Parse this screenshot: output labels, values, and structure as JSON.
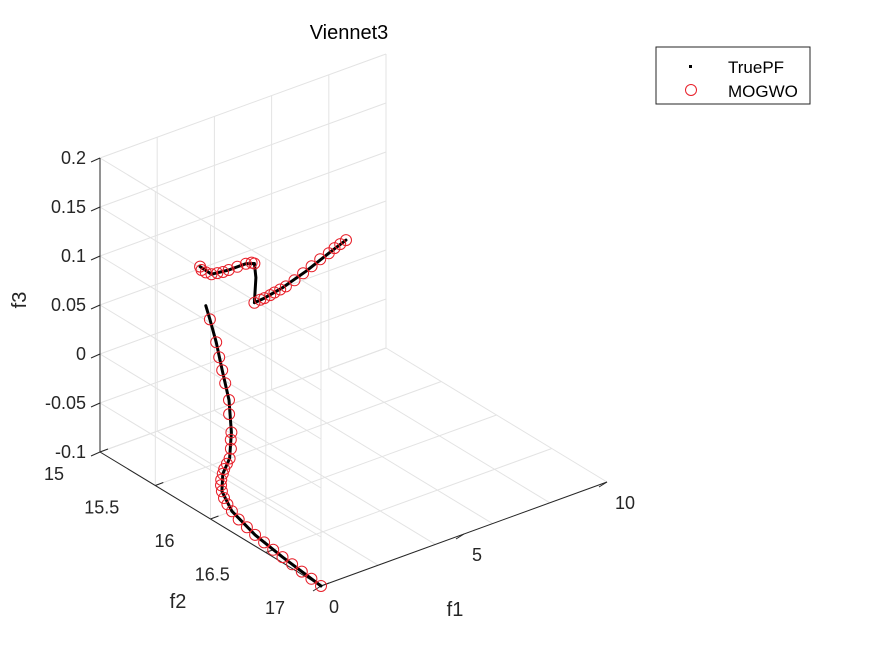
{
  "chart_data": {
    "type": "scatter3d",
    "title": "Viennet3",
    "xlabel": "f1",
    "ylabel": "f2",
    "zlabel": "f3",
    "xlim": [
      0,
      10
    ],
    "ylim": [
      15,
      17
    ],
    "zlim": [
      -0.1,
      0.2
    ],
    "xticks": [
      "0",
      "5",
      "10"
    ],
    "yticks": [
      "15",
      "15.5",
      "16",
      "16.5",
      "17"
    ],
    "zticks": [
      "-0.1",
      "-0.05",
      "0",
      "0.05",
      "0.1",
      "0.15",
      "0.2"
    ],
    "grid": true,
    "legend": {
      "position": "top-right",
      "entries": [
        "TruePF",
        "MOGWO"
      ]
    },
    "series": [
      {
        "name": "TruePF",
        "marker": "dot",
        "color": "#000000",
        "segments": [
          [
            [
              0.0,
              17.0,
              -0.1
            ],
            [
              0.2,
              16.6,
              -0.1
            ],
            [
              0.4,
              16.3,
              -0.1
            ],
            [
              0.75,
              16.0,
              -0.1
            ],
            [
              1.25,
              15.78,
              -0.1
            ],
            [
              1.9,
              15.62,
              -0.1
            ],
            [
              2.6,
              15.5,
              -0.1
            ],
            [
              3.05,
              15.4,
              -0.085
            ],
            [
              3.35,
              15.3,
              -0.062
            ],
            [
              3.5,
              15.2,
              -0.04
            ],
            [
              3.6,
              15.12,
              -0.018
            ],
            [
              3.65,
              15.05,
              0.0
            ],
            [
              3.7,
              15.0,
              0.01
            ]
          ],
          [
            [
              3.5,
              15.0,
              0.052
            ],
            [
              3.9,
              15.0,
              0.04
            ],
            [
              4.5,
              15.0,
              0.038
            ],
            [
              5.1,
              15.0,
              0.038
            ],
            [
              5.4,
              15.0,
              0.035
            ],
            [
              5.45,
              15.0,
              0.02
            ],
            [
              5.4,
              15.0,
              -0.005
            ],
            [
              5.75,
              15.0,
              -0.004
            ],
            [
              6.4,
              15.0,
              0.0
            ],
            [
              7.2,
              15.0,
              0.008
            ],
            [
              8.0,
              15.0,
              0.018
            ],
            [
              8.6,
              15.0,
              0.025
            ]
          ]
        ]
      },
      {
        "name": "MOGWO",
        "marker": "circle",
        "color": "#e8202a",
        "points": [
          [
            0.0,
            17.0,
            -0.1
          ],
          [
            0.05,
            16.9,
            -0.1
          ],
          [
            0.1,
            16.8,
            -0.1
          ],
          [
            0.15,
            16.7,
            -0.1
          ],
          [
            0.2,
            16.6,
            -0.1
          ],
          [
            0.26,
            16.5,
            -0.1
          ],
          [
            0.33,
            16.4,
            -0.1
          ],
          [
            0.4,
            16.3,
            -0.1
          ],
          [
            0.5,
            16.2,
            -0.1
          ],
          [
            0.6,
            16.1,
            -0.1
          ],
          [
            0.75,
            16.0,
            -0.1
          ],
          [
            0.9,
            15.92,
            -0.1
          ],
          [
            1.05,
            15.85,
            -0.1
          ],
          [
            1.25,
            15.78,
            -0.1
          ],
          [
            1.45,
            15.72,
            -0.1
          ],
          [
            1.65,
            15.67,
            -0.1
          ],
          [
            1.9,
            15.62,
            -0.1
          ],
          [
            2.1,
            15.58,
            -0.1
          ],
          [
            2.35,
            15.54,
            -0.1
          ],
          [
            2.6,
            15.5,
            -0.1
          ],
          [
            2.8,
            15.46,
            -0.095
          ],
          [
            2.95,
            15.42,
            -0.09
          ],
          [
            3.05,
            15.4,
            -0.085
          ],
          [
            3.2,
            15.34,
            -0.072
          ],
          [
            3.35,
            15.3,
            -0.062
          ],
          [
            3.45,
            15.24,
            -0.05
          ],
          [
            3.5,
            15.2,
            -0.04
          ],
          [
            3.55,
            15.16,
            -0.03
          ],
          [
            3.6,
            15.12,
            -0.018
          ],
          [
            3.65,
            15.05,
            0.0
          ],
          [
            3.5,
            15.0,
            0.052
          ],
          [
            3.55,
            15.0,
            0.048
          ],
          [
            3.7,
            15.0,
            0.044
          ],
          [
            3.9,
            15.0,
            0.04
          ],
          [
            4.1,
            15.0,
            0.039
          ],
          [
            4.3,
            15.0,
            0.038
          ],
          [
            4.5,
            15.0,
            0.038
          ],
          [
            4.8,
            15.0,
            0.038
          ],
          [
            5.1,
            15.0,
            0.038
          ],
          [
            5.3,
            15.0,
            0.037
          ],
          [
            5.4,
            15.0,
            0.035
          ],
          [
            5.4,
            15.0,
            -0.005
          ],
          [
            5.6,
            15.0,
            -0.004
          ],
          [
            5.75,
            15.0,
            -0.004
          ],
          [
            5.95,
            15.0,
            -0.003
          ],
          [
            6.1,
            15.0,
            -0.002
          ],
          [
            6.3,
            15.0,
            -0.001
          ],
          [
            6.5,
            15.0,
            0.0
          ],
          [
            6.8,
            15.0,
            0.003
          ],
          [
            7.1,
            15.0,
            0.007
          ],
          [
            7.4,
            15.0,
            0.011
          ],
          [
            7.7,
            15.0,
            0.015
          ],
          [
            8.0,
            15.0,
            0.018
          ],
          [
            8.2,
            15.0,
            0.021
          ],
          [
            8.4,
            15.0,
            0.023
          ],
          [
            8.6,
            15.0,
            0.025
          ]
        ]
      }
    ]
  }
}
